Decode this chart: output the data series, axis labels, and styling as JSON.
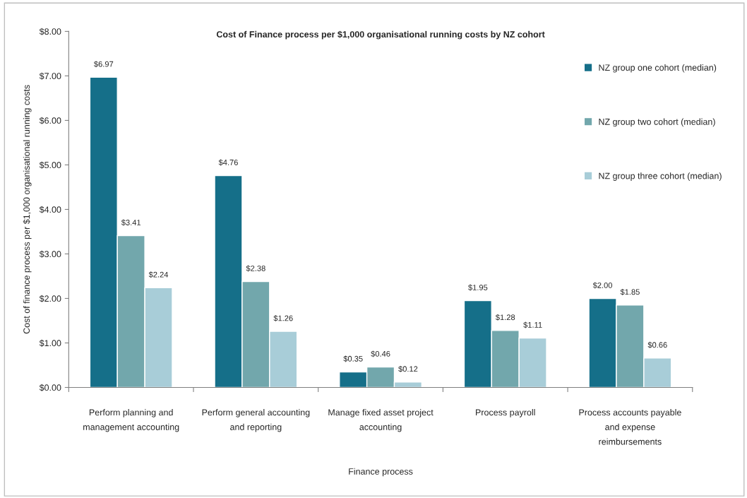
{
  "chart_data": {
    "type": "bar",
    "title": "Cost of Finance process per $1,000 organisational running costs by NZ cohort",
    "xlabel": "Finance process",
    "ylabel": "Cost of finance process per $1,000 organisational running costs",
    "categories": [
      "Perform planning and\nmanagement accounting",
      "Perform general accounting\nand reporting",
      "Manage fixed asset project\naccounting",
      "Process payroll",
      "Process accounts payable\nand expense\nreimbursements"
    ],
    "series": [
      {
        "name": "NZ group one cohort (median)",
        "color": "#156f89",
        "values": [
          6.97,
          4.76,
          0.35,
          1.95,
          2.0
        ],
        "value_labels": [
          "$6.97",
          "$4.76",
          "$0.35",
          "$1.95",
          "$2.00"
        ]
      },
      {
        "name": "NZ group two cohort (median)",
        "color": "#72a7ac",
        "values": [
          3.41,
          2.38,
          0.46,
          1.28,
          1.85
        ],
        "value_labels": [
          "$3.41",
          "$2.38",
          "$0.46",
          "$1.28",
          "$1.85"
        ]
      },
      {
        "name": "NZ group three cohort (median)",
        "color": "#a8cdd8",
        "values": [
          2.24,
          1.26,
          0.12,
          1.11,
          0.66
        ],
        "value_labels": [
          "$2.24",
          "$1.26",
          "$0.12",
          "$1.11",
          "$0.66"
        ]
      }
    ],
    "ylim": [
      0,
      8
    ],
    "yticks": [
      {
        "value": 0,
        "label": "$0.00"
      },
      {
        "value": 1,
        "label": "$1.00"
      },
      {
        "value": 2,
        "label": "$2.00"
      },
      {
        "value": 3,
        "label": "$3.00"
      },
      {
        "value": 4,
        "label": "$4.00"
      },
      {
        "value": 5,
        "label": "$5.00"
      },
      {
        "value": 6,
        "label": "$6.00"
      },
      {
        "value": 7,
        "label": "$7.00"
      },
      {
        "value": 8,
        "label": "$8.00"
      }
    ],
    "legend": "top right",
    "grid": false
  }
}
